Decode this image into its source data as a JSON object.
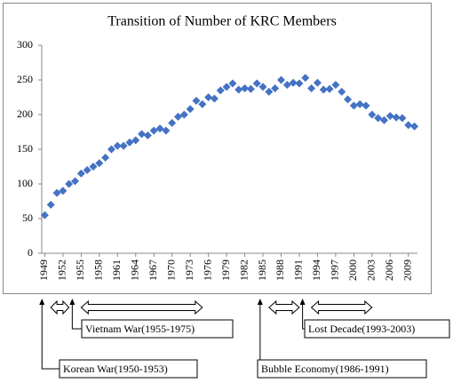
{
  "chart_data": {
    "type": "scatter",
    "title": "Transition of Number of  KRC Members",
    "x": [
      1949,
      1950,
      1951,
      1952,
      1953,
      1954,
      1955,
      1956,
      1957,
      1958,
      1959,
      1960,
      1961,
      1962,
      1963,
      1964,
      1965,
      1966,
      1967,
      1968,
      1969,
      1970,
      1971,
      1972,
      1973,
      1974,
      1975,
      1976,
      1977,
      1978,
      1979,
      1980,
      1981,
      1982,
      1983,
      1984,
      1985,
      1986,
      1987,
      1988,
      1989,
      1990,
      1991,
      1992,
      1993,
      1994,
      1995,
      1996,
      1997,
      1998,
      1999,
      2000,
      2001,
      2002,
      2003,
      2004,
      2005,
      2006,
      2007,
      2008,
      2009,
      2010
    ],
    "series": [
      {
        "color": "#4472c4",
        "values": [
          55,
          70,
          87,
          90,
          100,
          104,
          115,
          120,
          125,
          130,
          138,
          150,
          155,
          155,
          160,
          163,
          172,
          170,
          177,
          180,
          177,
          188,
          197,
          200,
          208,
          220,
          215,
          225,
          223,
          235,
          240,
          245,
          236,
          238,
          237,
          245,
          240,
          233,
          238,
          250,
          243,
          246,
          245,
          253,
          238,
          246,
          236,
          237,
          243,
          233,
          222,
          213,
          215,
          213,
          200,
          195,
          192,
          198,
          196,
          195,
          185,
          183
        ]
      }
    ],
    "xlim": [
      1948.5,
      2010.5
    ],
    "xticks": [
      1949,
      1952,
      1955,
      1958,
      1961,
      1964,
      1967,
      1970,
      1973,
      1976,
      1979,
      1982,
      1985,
      1988,
      1991,
      1994,
      1997,
      2000,
      2003,
      2006,
      2009
    ],
    "ylim": [
      0,
      300
    ],
    "yticks": [
      0,
      50,
      100,
      150,
      200,
      250,
      300
    ],
    "grid": false,
    "annotations": [
      {
        "label": "Korean War(1950-1953)",
        "start": 1950,
        "end": 1953
      },
      {
        "label": "Vietnam War(1955-1975)",
        "start": 1955,
        "end": 1975
      },
      {
        "label": "Bubble Economy(1986-1991)",
        "start": 1986,
        "end": 1991
      },
      {
        "label": "Lost Decade(1993-2003)",
        "start": 1993,
        "end": 2003
      }
    ]
  }
}
